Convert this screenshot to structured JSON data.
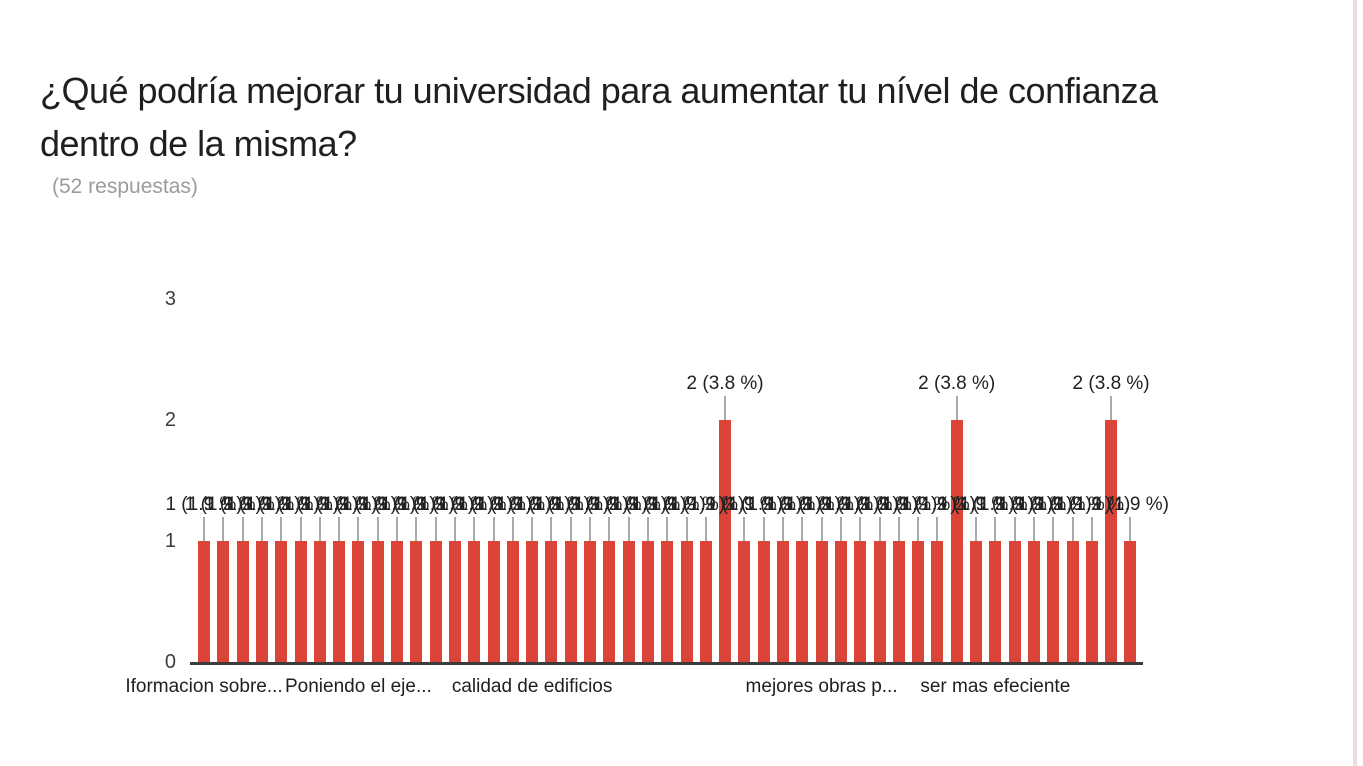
{
  "page": {
    "title_lines": [
      "¿Qué podría mejorar tu universidad para aumentar tu nível de confianza",
      "dentro de la misma?"
    ],
    "responses_label": "(52 respuestas)"
  },
  "chart_data": {
    "type": "bar",
    "title": "¿Qué podría mejorar tu universidad para aumentar tu nível de confianza dentro de la misma?",
    "subtitle": "(52 respuestas)",
    "total_responses": 52,
    "values": [
      1,
      1,
      1,
      1,
      1,
      1,
      1,
      1,
      1,
      1,
      1,
      1,
      1,
      1,
      1,
      1,
      1,
      1,
      1,
      1,
      1,
      1,
      1,
      1,
      1,
      1,
      1,
      2,
      1,
      1,
      1,
      1,
      1,
      1,
      1,
      1,
      1,
      1,
      1,
      2,
      1,
      1,
      1,
      1,
      1,
      1,
      1,
      2,
      1
    ],
    "value_label_format": {
      "1": "1 (1.9 %)",
      "2": "2 (3.8 %)"
    },
    "x_tick_labels": [
      "Iformacion sobre...",
      "Poniendo el eje...",
      "calidad de edificios",
      "mejores obras p...",
      "ser mas efeciente"
    ],
    "x_tick_bar_indices": [
      0,
      8,
      17,
      32,
      41
    ],
    "y_ticks": [
      0,
      1,
      2,
      3
    ],
    "ylim": [
      0,
      3
    ],
    "grid": false,
    "legend": false,
    "colors": {
      "bar": "#db4437",
      "axis_line": "#3b3b3b",
      "stem": "#a9a9a9",
      "label_text": "#212121",
      "axis_text": "#3d3d3d",
      "title_text": "#1f1f1f",
      "subtitle_text": "#9b9b9b",
      "right_edge_line": "#eedde0"
    }
  }
}
